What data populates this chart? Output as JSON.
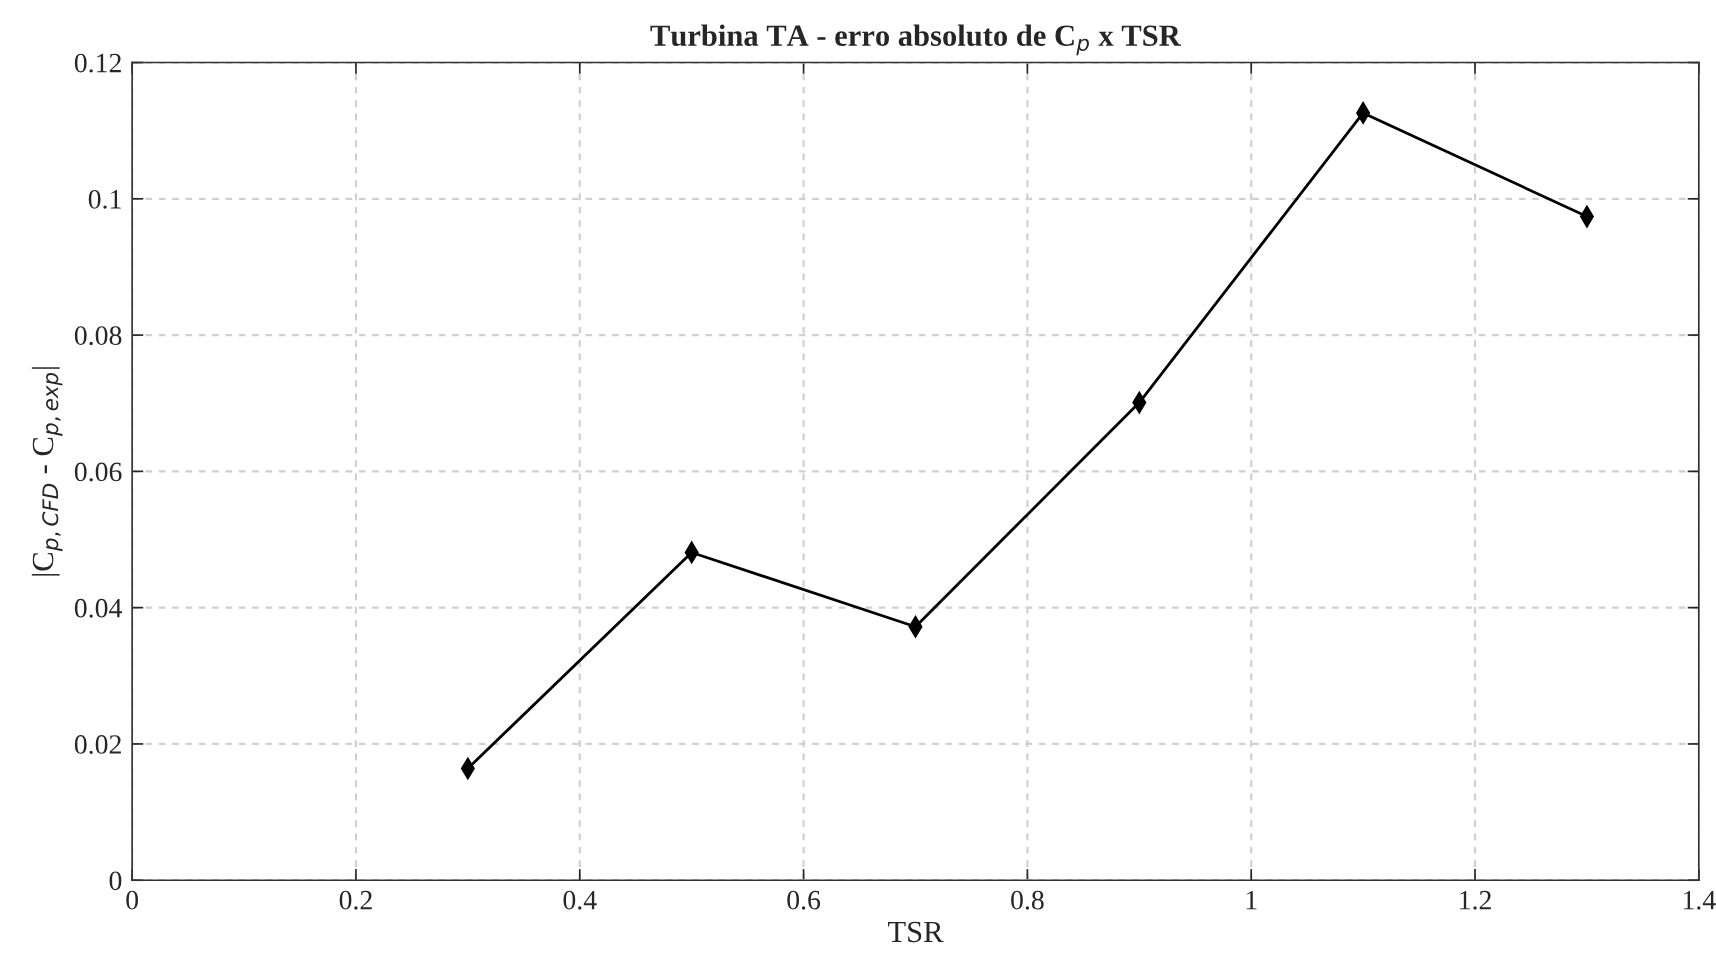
{
  "chart_data": {
    "type": "line",
    "title": "Turbina TA - erro absoluto de C$_{p}$ x TSR",
    "xlabel": "TSR",
    "ylabel": "|C$_{p,CFD}$ - C$_{p,exp}$|",
    "x": [
      0.3,
      0.5,
      0.7,
      0.9,
      1.1,
      1.3
    ],
    "series": [
      {
        "color": "#000000",
        "values": [
          0.0164,
          0.0481,
          0.0372,
          0.0701,
          0.1126,
          0.0974
        ]
      }
    ],
    "xlim": [
      0,
      1.4
    ],
    "xticks": [
      0,
      0.2,
      0.4,
      0.6,
      0.8,
      1,
      1.2,
      1.4
    ],
    "ylim": [
      0,
      0.12
    ],
    "yticks": [
      0,
      0.02,
      0.04,
      0.06,
      0.08,
      0.1,
      0.12
    ],
    "grid": true,
    "marker": "diamond",
    "line_style": "solid"
  }
}
